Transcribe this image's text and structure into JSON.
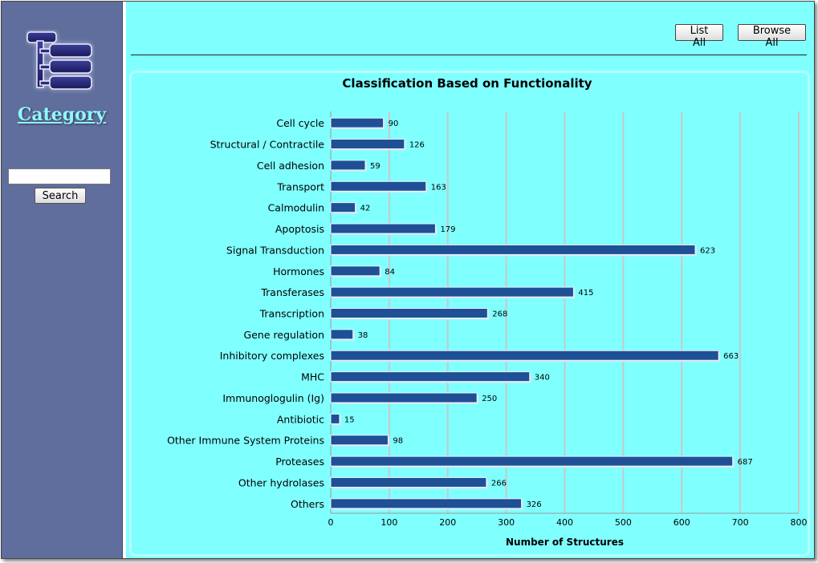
{
  "sidebar": {
    "category_label": "Category",
    "search_value": "",
    "search_button_label": "Search"
  },
  "toolbar": {
    "list_all_label": "List All",
    "browse_all_label": "Browse All"
  },
  "colors": {
    "sidebar_bg": "#5f6e9c",
    "main_bg": "#80ffff",
    "bar_fill": "#1f4f95",
    "category_text": "#8ff8ff"
  },
  "chart_data": {
    "type": "bar",
    "orientation": "horizontal",
    "title": "Classification Based on Functionality",
    "xlabel": "Number of Structures",
    "ylabel": "",
    "xlim": [
      0,
      800
    ],
    "xticks": [
      0,
      100,
      200,
      300,
      400,
      500,
      600,
      700,
      800
    ],
    "grid": true,
    "categories": [
      "Cell cycle",
      "Structural / Contractile",
      "Cell adhesion",
      "Transport",
      "Calmodulin",
      "Apoptosis",
      "Signal Transduction",
      "Hormones",
      "Transferases",
      "Transcription",
      "Gene regulation",
      "Inhibitory complexes",
      "MHC",
      "Immunoglogulin (Ig)",
      "Antibiotic",
      "Other Immune System Proteins",
      "Proteases",
      "Other hydrolases",
      "Others"
    ],
    "values": [
      90,
      126,
      59,
      163,
      42,
      179,
      623,
      84,
      415,
      268,
      38,
      663,
      340,
      250,
      15,
      98,
      687,
      266,
      326
    ]
  }
}
